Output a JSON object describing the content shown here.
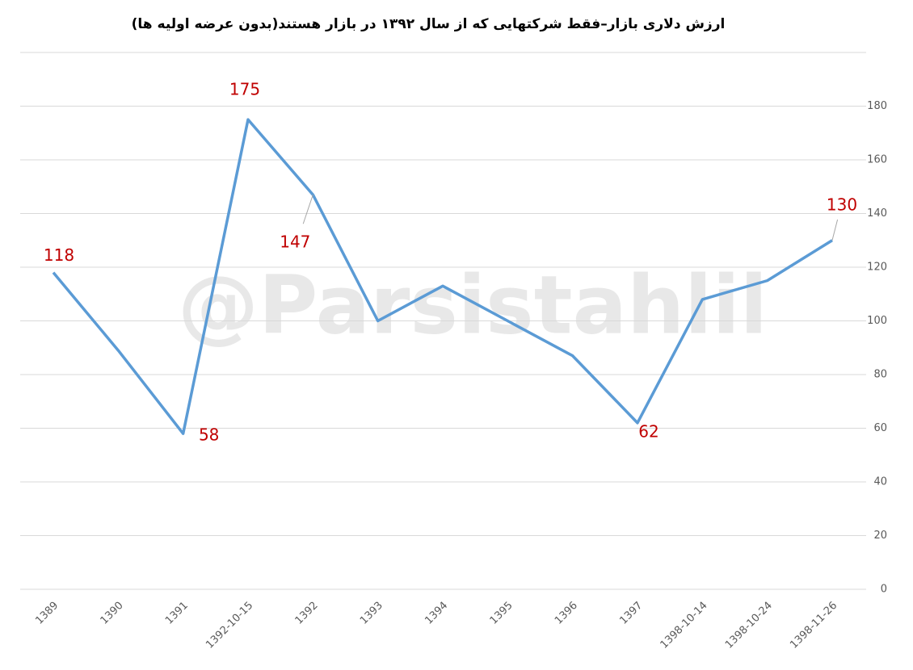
{
  "chart_data": {
    "type": "line",
    "title": "ارزش دلاری بازار–فقط شرکتهایی که از سال ۱۳۹۲ در بازار هستند(بدون عرضه اولیه ها)",
    "watermark": "@Parsistahlil",
    "categories": [
      "1389",
      "1390",
      "1391",
      "1392-10-15",
      "1392",
      "1393",
      "1394",
      "1395",
      "1396",
      "1397",
      "1398-10-14",
      "1398-10-24",
      "1398-11-26"
    ],
    "series": [
      {
        "name": "ارزش دلاری",
        "color": "#5b9bd5",
        "values": [
          118,
          89,
          58,
          175,
          147,
          100,
          113,
          100,
          87,
          62,
          108,
          115,
          130
        ],
        "value_labels": [
          "118",
          null,
          "58",
          "175",
          "147",
          null,
          null,
          null,
          null,
          "62",
          null,
          null,
          "130"
        ]
      }
    ],
    "ylim": [
      0,
      200
    ],
    "yticks": [
      0,
      20,
      40,
      60,
      80,
      100,
      120,
      140,
      160,
      180
    ],
    "grid": true,
    "legend": false
  }
}
